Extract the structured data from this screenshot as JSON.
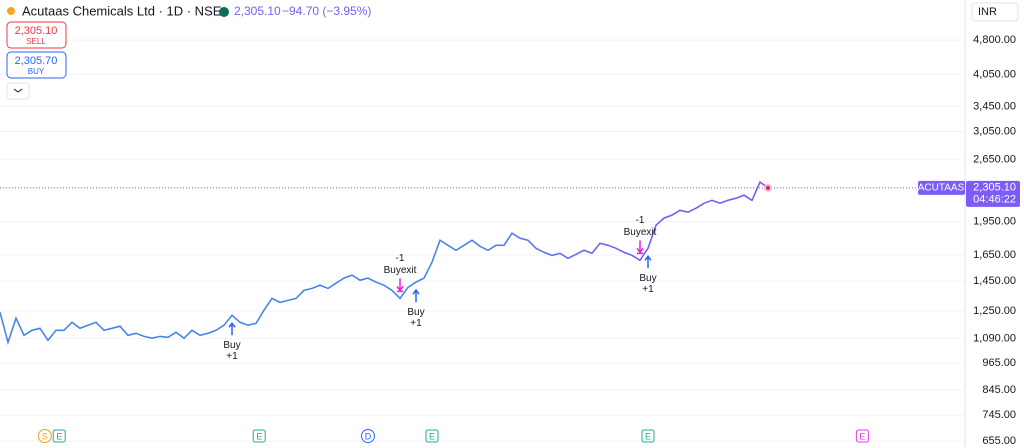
{
  "header": {
    "title": "Acutaas Chemicals Ltd · 1D · NSE",
    "price": "2,305.10",
    "change": "−94.70 (−3.95%)"
  },
  "trade": {
    "sell_price": "2,305.10",
    "sell_label": "SELL",
    "buy_price": "2,305.70",
    "buy_label": "BUY"
  },
  "currency": "INR",
  "chart_data": {
    "type": "line",
    "log_scale": true,
    "grid": true,
    "series": [
      {
        "name": "ACUTAAS",
        "color": "#4a86e8",
        "color_end": "#7c5cf5",
        "values": [
          1243,
          1070,
          1206,
          1108,
          1136,
          1147,
          1081,
          1136,
          1136,
          1182,
          1147,
          1165,
          1182,
          1136,
          1147,
          1159,
          1108,
          1119,
          1102,
          1092,
          1102,
          1097,
          1125,
          1092,
          1136,
          1108,
          1119,
          1136,
          1165,
          1224,
          1182,
          1165,
          1176,
          1255,
          1331,
          1305,
          1318,
          1331,
          1385,
          1399,
          1421,
          1399,
          1435,
          1472,
          1494,
          1457,
          1472,
          1443,
          1421,
          1385,
          1331,
          1406,
          1443,
          1472,
          1593,
          1777,
          1733,
          1690,
          1733,
          1777,
          1724,
          1690,
          1733,
          1733,
          1840,
          1795,
          1777,
          1707,
          1673,
          1648,
          1665,
          1624,
          1657,
          1690,
          1665,
          1750,
          1733,
          1707,
          1673,
          1648,
          1608,
          1707,
          1915,
          1983,
          2013,
          2062,
          2042,
          2083,
          2135,
          2167,
          2135,
          2167,
          2189,
          2222,
          2167,
          2372,
          2305.1
        ]
      }
    ],
    "ylim": [
      633,
      5860
    ],
    "yticks": [
      {
        "value": 4800,
        "label": "4,800.00"
      },
      {
        "value": 4050,
        "label": "4,050.00"
      },
      {
        "value": 3450,
        "label": "3,450.00"
      },
      {
        "value": 3050,
        "label": "3,050.00"
      },
      {
        "value": 2650,
        "label": "2,650.00"
      },
      {
        "value": 1950,
        "label": "1,950.00"
      },
      {
        "value": 1650,
        "label": "1,650.00"
      },
      {
        "value": 1450,
        "label": "1,450.00"
      },
      {
        "value": 1250,
        "label": "1,250.00"
      },
      {
        "value": 1090,
        "label": "1,090.00"
      },
      {
        "value": 965,
        "label": "965.00"
      },
      {
        "value": 845,
        "label": "845.00"
      },
      {
        "value": 745,
        "label": "745.00"
      },
      {
        "value": 655,
        "label": "655.00"
      }
    ],
    "last_price": {
      "value": 2305.1,
      "label": "2,305.10",
      "countdown": "04:46:22",
      "symbol": "ACUTAAS",
      "color": "#7c5cf5"
    },
    "signals": [
      {
        "index": 29,
        "side": "buy",
        "label": "Buy",
        "qty": "+1",
        "color": "#2962ff"
      },
      {
        "index": 50,
        "side": "exit",
        "label": "Buyexit",
        "qty": "-1",
        "color": "#e91ee0"
      },
      {
        "index": 52,
        "side": "buy",
        "label": "Buy",
        "qty": "+1",
        "color": "#2962ff"
      },
      {
        "index": 80,
        "side": "exit",
        "label": "Buyexit",
        "qty": "-1",
        "color": "#e91ee0"
      },
      {
        "index": 81,
        "side": "buy",
        "label": "Buy",
        "qty": "+1",
        "color": "#2962ff"
      }
    ],
    "events": [
      {
        "index": 5.6,
        "label": "S",
        "color": "#f59b23"
      },
      {
        "index": 7.4,
        "label": "E",
        "color": "#22ab94"
      },
      {
        "index": 32.4,
        "label": "E",
        "color": "#22ab94"
      },
      {
        "index": 46,
        "label": "D",
        "color": "#2962ff"
      },
      {
        "index": 54,
        "label": "E",
        "color": "#22ab94"
      },
      {
        "index": 81,
        "label": "E",
        "color": "#22ab94"
      },
      {
        "index": 107.8,
        "label": "E",
        "color": "#e040e0"
      }
    ]
  }
}
